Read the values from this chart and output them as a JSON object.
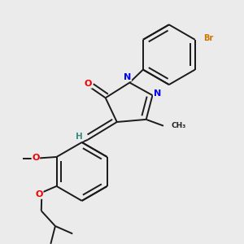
{
  "background_color": "#ebebeb",
  "atom_colors": {
    "C": "#000000",
    "H": "#3a8a80",
    "N": "#0000ee",
    "O": "#ee0000",
    "Br": "#cc7700"
  },
  "bond_color": "#1a1a1a",
  "bond_width": 1.4,
  "fig_w": 3.0,
  "fig_h": 3.0,
  "dpi": 100
}
